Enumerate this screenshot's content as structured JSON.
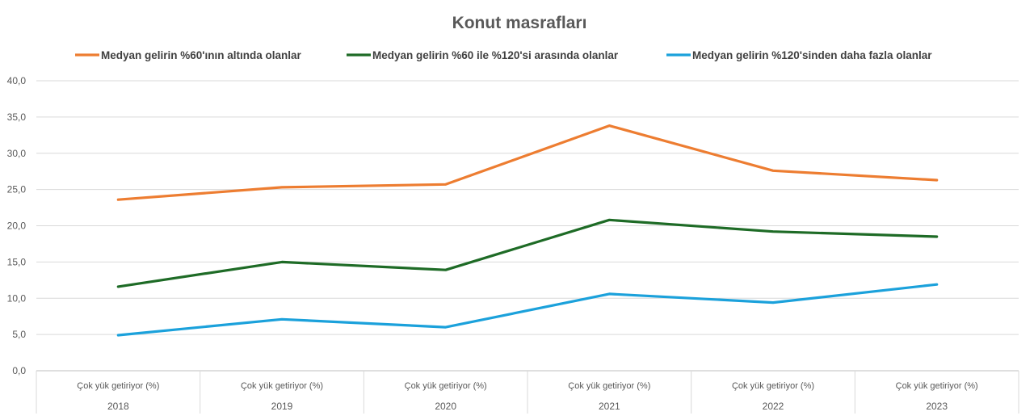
{
  "chart_data": {
    "type": "line",
    "title": "Konut masrafları",
    "categories": [
      {
        "label": "Çok yük getiriyor (%)",
        "year": "2018"
      },
      {
        "label": "Çok yük getiriyor (%)",
        "year": "2019"
      },
      {
        "label": "Çok yük getiriyor (%)",
        "year": "2020"
      },
      {
        "label": "Çok yük getiriyor (%)",
        "year": "2021"
      },
      {
        "label": "Çok yük getiriyor (%)",
        "year": "2022"
      },
      {
        "label": "Çok yük getiriyor (%)",
        "year": "2023"
      }
    ],
    "series": [
      {
        "name": "Medyan gelirin %60'ının altında olanlar",
        "color": "#ED7D31",
        "values": [
          23.6,
          25.3,
          25.7,
          33.8,
          27.6,
          26.3
        ]
      },
      {
        "name": "Medyan gelirin %60 ile %120'si arasında olanlar",
        "color": "#1E6B26",
        "values": [
          11.6,
          15.0,
          13.9,
          20.8,
          19.2,
          18.5
        ]
      },
      {
        "name": "Medyan gelirin  %120'sinden daha fazla olanlar",
        "color": "#1BA1DB",
        "values": [
          4.9,
          7.1,
          6.0,
          10.6,
          9.4,
          11.9
        ]
      }
    ],
    "ylim": [
      0,
      40
    ],
    "yticks": [
      "0,0",
      "5,0",
      "10,0",
      "15,0",
      "20,0",
      "25,0",
      "30,0",
      "35,0",
      "40,0"
    ],
    "grid": true,
    "legend_position": "top"
  }
}
